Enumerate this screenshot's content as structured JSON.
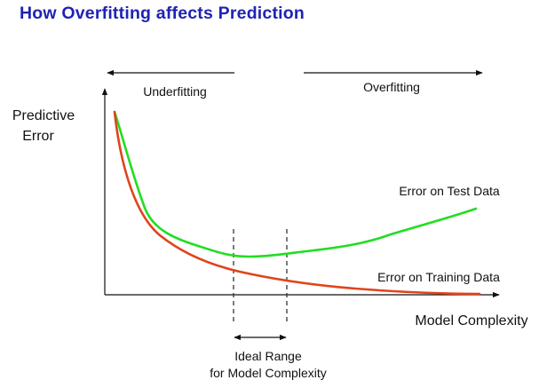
{
  "title": "How Overfitting affects Prediction",
  "regions": {
    "left": "Underfitting",
    "right": "Overfitting"
  },
  "axes": {
    "y_label_line1": "Predictive",
    "y_label_line2": "Error",
    "x_label": "Model Complexity"
  },
  "curves": {
    "test": {
      "label": "Error on Test Data",
      "color": "#22dd22"
    },
    "training": {
      "label": "Error on Training Data",
      "color": "#e0441a"
    }
  },
  "ideal_range": {
    "line1": "Ideal Range",
    "line2": "for Model Complexity"
  }
}
